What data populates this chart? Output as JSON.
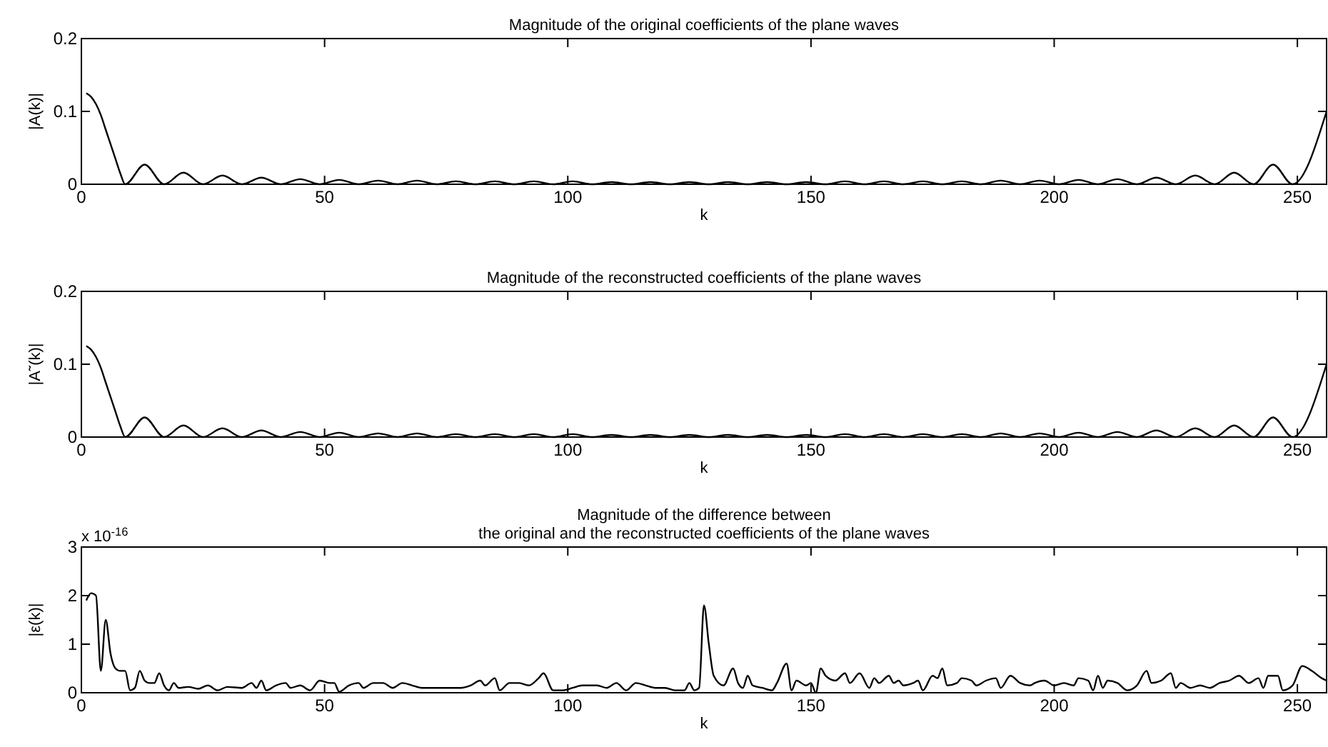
{
  "chart_data": [
    {
      "type": "line",
      "title": "Magnitude of the original coefficients of the plane waves",
      "xlabel": "k",
      "ylabel": "|A(k)|",
      "xlim": [
        0,
        256
      ],
      "xticks": [
        0,
        50,
        100,
        150,
        200,
        250
      ],
      "ylim": [
        0,
        0.2
      ],
      "yticks": [
        0,
        0.1,
        0.2
      ],
      "grid": false,
      "series": [
        {
          "color": "#000000",
          "x": [
            1,
            2,
            3,
            4,
            5,
            6,
            7,
            8,
            9,
            13,
            17,
            21,
            25,
            29,
            33,
            37,
            41,
            45,
            49,
            53,
            57,
            61,
            65,
            69,
            73,
            77,
            81,
            85,
            89,
            93,
            97,
            101,
            105,
            109,
            113,
            117,
            121,
            125,
            129,
            133,
            137,
            141,
            145,
            149,
            153,
            157,
            161,
            165,
            169,
            173,
            177,
            181,
            185,
            189,
            193,
            197,
            201,
            205,
            209,
            213,
            217,
            221,
            225,
            229,
            233,
            237,
            241,
            245,
            249,
            256
          ],
          "values": [
            0.125,
            0.12,
            0.11,
            0.095,
            0.075,
            0.055,
            0.035,
            0.015,
            0,
            0.027,
            0,
            0.016,
            0,
            0.012,
            0,
            0.009,
            0,
            0.007,
            0,
            0.006,
            0,
            0.005,
            0,
            0.005,
            0,
            0.004,
            0,
            0.004,
            0,
            0.004,
            0,
            0.004,
            0,
            0.003,
            0,
            0.003,
            0,
            0.003,
            0,
            0.003,
            0,
            0.003,
            0,
            0.003,
            0,
            0.004,
            0,
            0.004,
            0,
            0.004,
            0,
            0.004,
            0,
            0.005,
            0,
            0.005,
            0,
            0.006,
            0,
            0.007,
            0,
            0.009,
            0,
            0.012,
            0,
            0.016,
            0,
            0.027,
            0,
            0.1
          ]
        }
      ]
    },
    {
      "type": "line",
      "title": "Magnitude of the reconstructed coefficients of the plane waves",
      "xlabel": "k",
      "ylabel": "|A˜(k)|",
      "xlim": [
        0,
        256
      ],
      "xticks": [
        0,
        50,
        100,
        150,
        200,
        250
      ],
      "ylim": [
        0,
        0.2
      ],
      "yticks": [
        0,
        0.1,
        0.2
      ],
      "grid": false,
      "series": [
        {
          "color": "#000000",
          "x": [
            1,
            2,
            3,
            4,
            5,
            6,
            7,
            8,
            9,
            13,
            17,
            21,
            25,
            29,
            33,
            37,
            41,
            45,
            49,
            53,
            57,
            61,
            65,
            69,
            73,
            77,
            81,
            85,
            89,
            93,
            97,
            101,
            105,
            109,
            113,
            117,
            121,
            125,
            129,
            133,
            137,
            141,
            145,
            149,
            153,
            157,
            161,
            165,
            169,
            173,
            177,
            181,
            185,
            189,
            193,
            197,
            201,
            205,
            209,
            213,
            217,
            221,
            225,
            229,
            233,
            237,
            241,
            245,
            249,
            256
          ],
          "values": [
            0.125,
            0.12,
            0.11,
            0.095,
            0.075,
            0.055,
            0.035,
            0.015,
            0,
            0.027,
            0,
            0.016,
            0,
            0.012,
            0,
            0.009,
            0,
            0.007,
            0,
            0.006,
            0,
            0.005,
            0,
            0.005,
            0,
            0.004,
            0,
            0.004,
            0,
            0.004,
            0,
            0.004,
            0,
            0.003,
            0,
            0.003,
            0,
            0.003,
            0,
            0.003,
            0,
            0.003,
            0,
            0.003,
            0,
            0.004,
            0,
            0.004,
            0,
            0.004,
            0,
            0.004,
            0,
            0.005,
            0,
            0.005,
            0,
            0.006,
            0,
            0.007,
            0,
            0.009,
            0,
            0.012,
            0,
            0.016,
            0,
            0.027,
            0,
            0.1
          ]
        }
      ]
    },
    {
      "type": "line",
      "title": "Magnitude of the difference between\nthe original and the reconstructed coefficients of the plane waves",
      "xlabel": "k",
      "ylabel": "|ε(k)|",
      "annotations": [
        "x 10$^{-16}$"
      ],
      "xlim": [
        0,
        256
      ],
      "xticks": [
        0,
        50,
        100,
        150,
        200,
        250
      ],
      "ylim": [
        0,
        3
      ],
      "yticks": [
        0,
        1,
        2,
        3
      ],
      "grid": false,
      "series": [
        {
          "color": "#000000",
          "x": [
            1,
            2,
            3,
            4,
            5,
            6,
            7,
            8,
            9,
            10,
            11,
            12,
            13,
            14,
            15,
            16,
            17,
            18,
            19,
            20,
            22,
            24,
            26,
            28,
            30,
            33,
            35,
            36,
            37,
            38,
            40,
            42,
            43,
            45,
            47,
            49,
            51,
            52,
            53,
            55,
            57,
            58,
            60,
            62,
            64,
            66,
            68,
            70,
            72,
            75,
            78,
            80,
            82,
            83,
            85,
            86,
            88,
            90,
            92,
            94,
            95,
            97,
            99,
            101,
            103,
            106,
            108,
            110,
            112,
            114,
            116,
            118,
            120,
            122,
            124,
            125,
            126,
            127,
            128,
            129,
            130,
            132,
            134,
            135,
            136,
            137,
            138,
            140,
            142,
            143,
            145,
            146,
            147,
            149,
            150,
            151,
            152,
            153,
            155,
            157,
            158,
            160,
            162,
            163,
            164,
            166,
            167,
            168,
            169,
            171,
            172,
            173,
            175,
            176,
            177,
            178,
            180,
            181,
            183,
            184,
            186,
            188,
            189,
            191,
            193,
            195,
            196,
            198,
            200,
            202,
            204,
            205,
            207,
            208,
            209,
            210,
            211,
            213,
            215,
            217,
            219,
            220,
            222,
            224,
            225,
            226,
            228,
            230,
            232,
            234,
            236,
            238,
            240,
            242,
            243,
            244,
            246,
            247,
            249,
            251,
            253,
            255,
            256
          ],
          "values": [
            1.9,
            2.05,
            2.0,
            0.45,
            1.5,
            0.8,
            0.5,
            0.45,
            0.45,
            0.05,
            0.1,
            0.45,
            0.25,
            0.2,
            0.2,
            0.4,
            0.15,
            0.05,
            0.2,
            0.1,
            0.12,
            0.08,
            0.15,
            0.05,
            0.12,
            0.1,
            0.2,
            0.1,
            0.25,
            0.05,
            0.15,
            0.2,
            0.1,
            0.15,
            0.05,
            0.25,
            0.2,
            0.2,
            0.02,
            0.15,
            0.2,
            0.1,
            0.2,
            0.2,
            0.1,
            0.2,
            0.15,
            0.1,
            0.1,
            0.1,
            0.1,
            0.15,
            0.25,
            0.15,
            0.3,
            0.05,
            0.2,
            0.2,
            0.15,
            0.3,
            0.4,
            0.05,
            0.05,
            0.1,
            0.15,
            0.15,
            0.1,
            0.2,
            0.05,
            0.2,
            0.15,
            0.1,
            0.1,
            0.05,
            0.05,
            0.2,
            0.05,
            0.1,
            1.8,
            1.0,
            0.35,
            0.15,
            0.5,
            0.2,
            0.1,
            0.35,
            0.15,
            0.1,
            0.05,
            0.2,
            0.6,
            0.05,
            0.25,
            0.15,
            0.2,
            0.0,
            0.5,
            0.35,
            0.25,
            0.4,
            0.2,
            0.4,
            0.1,
            0.3,
            0.2,
            0.35,
            0.2,
            0.25,
            0.15,
            0.2,
            0.25,
            0.05,
            0.35,
            0.3,
            0.5,
            0.15,
            0.2,
            0.3,
            0.25,
            0.15,
            0.25,
            0.3,
            0.1,
            0.35,
            0.2,
            0.15,
            0.2,
            0.25,
            0.15,
            0.2,
            0.15,
            0.3,
            0.25,
            0.05,
            0.35,
            0.1,
            0.25,
            0.2,
            0.05,
            0.15,
            0.45,
            0.2,
            0.25,
            0.4,
            0.1,
            0.2,
            0.1,
            0.15,
            0.1,
            0.2,
            0.25,
            0.35,
            0.2,
            0.3,
            0.1,
            0.35,
            0.35,
            0.05,
            0.15,
            0.55,
            0.45,
            0.3,
            0.25
          ]
        }
      ]
    }
  ]
}
